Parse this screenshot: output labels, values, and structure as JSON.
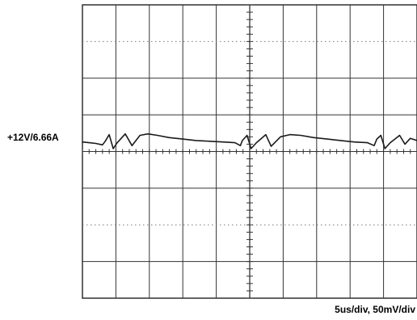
{
  "trace_label": "+12V/6.66A",
  "scale_label": "5us/div,  50mV/div",
  "chart_data": {
    "type": "line",
    "title": "",
    "xlabel": "",
    "ylabel": "",
    "grid": true,
    "x_divisions": 10,
    "y_divisions": 8,
    "time_per_div": "5us",
    "volts_per_div": "50mV",
    "xlim": [
      0,
      50
    ],
    "ylim": [
      -200,
      200
    ],
    "line_color": "#1a1a1a",
    "series": [
      {
        "points": [
          [
            0.0,
            13
          ],
          [
            1.0,
            12
          ],
          [
            2.0,
            11
          ],
          [
            3.0,
            9
          ],
          [
            3.4,
            14
          ],
          [
            4.0,
            23
          ],
          [
            4.6,
            4
          ],
          [
            5.2,
            12
          ],
          [
            6.4,
            24
          ],
          [
            7.4,
            8
          ],
          [
            8.6,
            22
          ],
          [
            9.8,
            24
          ],
          [
            11.2,
            22
          ],
          [
            13.0,
            19
          ],
          [
            15.0,
            17
          ],
          [
            17.0,
            15
          ],
          [
            19.0,
            14
          ],
          [
            21.0,
            13
          ],
          [
            22.8,
            12
          ],
          [
            23.6,
            8
          ],
          [
            23.9,
            15
          ],
          [
            24.6,
            22
          ],
          [
            25.2,
            4
          ],
          [
            26.0,
            12
          ],
          [
            27.4,
            23
          ],
          [
            28.2,
            7
          ],
          [
            29.6,
            20
          ],
          [
            31.0,
            23
          ],
          [
            32.6,
            22
          ],
          [
            34.6,
            19
          ],
          [
            36.6,
            17
          ],
          [
            38.6,
            15
          ],
          [
            40.6,
            13
          ],
          [
            42.6,
            12
          ],
          [
            43.6,
            8
          ],
          [
            44.0,
            17
          ],
          [
            44.6,
            22
          ],
          [
            45.2,
            4
          ],
          [
            46.0,
            12
          ],
          [
            47.4,
            22
          ],
          [
            48.2,
            10
          ],
          [
            49.0,
            18
          ],
          [
            50.0,
            15
          ]
        ]
      }
    ]
  }
}
